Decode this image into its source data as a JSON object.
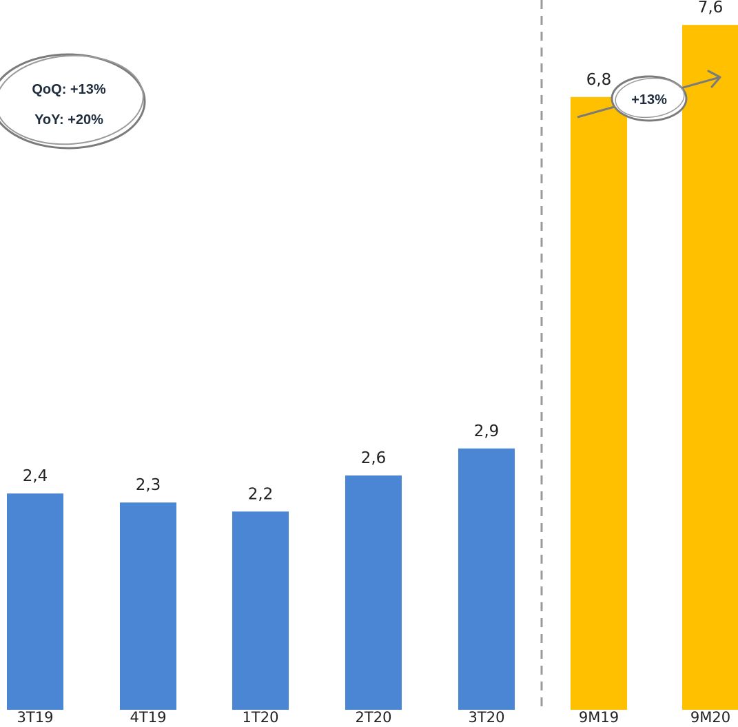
{
  "chart_data": {
    "type": "bar",
    "categories": [
      "3T19",
      "4T19",
      "1T20",
      "2T20",
      "3T20",
      "9M19",
      "9M20"
    ],
    "values": [
      2.4,
      2.3,
      2.2,
      2.6,
      2.9,
      6.8,
      7.6
    ],
    "value_labels": [
      "2,4",
      "2,3",
      "2,2",
      "2,6",
      "2,9",
      "6,8",
      "7,6"
    ],
    "groups": [
      {
        "members": [
          "3T19",
          "4T19",
          "1T20",
          "2T20",
          "3T20"
        ],
        "color": "#4A86D4"
      },
      {
        "members": [
          "9M19",
          "9M20"
        ],
        "color": "#FFC000"
      }
    ],
    "ylim": [
      0,
      7.8
    ],
    "grid": false,
    "legend": "none",
    "separator": "dashed vertical line between 3T20 and 9M19",
    "annotations": [
      {
        "id": "quarter_growth",
        "lines": [
          "QoQ: +13%",
          "YoY: +20%"
        ],
        "style": "hand-drawn ellipse"
      },
      {
        "id": "period_growth",
        "text": "+13%",
        "style": "ellipse on rising arrow"
      }
    ]
  },
  "colors": {
    "quarter_bar": "#4A86D4",
    "period_bar": "#FFC000",
    "separator": "#9a9a9a",
    "annotation_stroke": "#7b7b7b",
    "text": "#222222"
  }
}
